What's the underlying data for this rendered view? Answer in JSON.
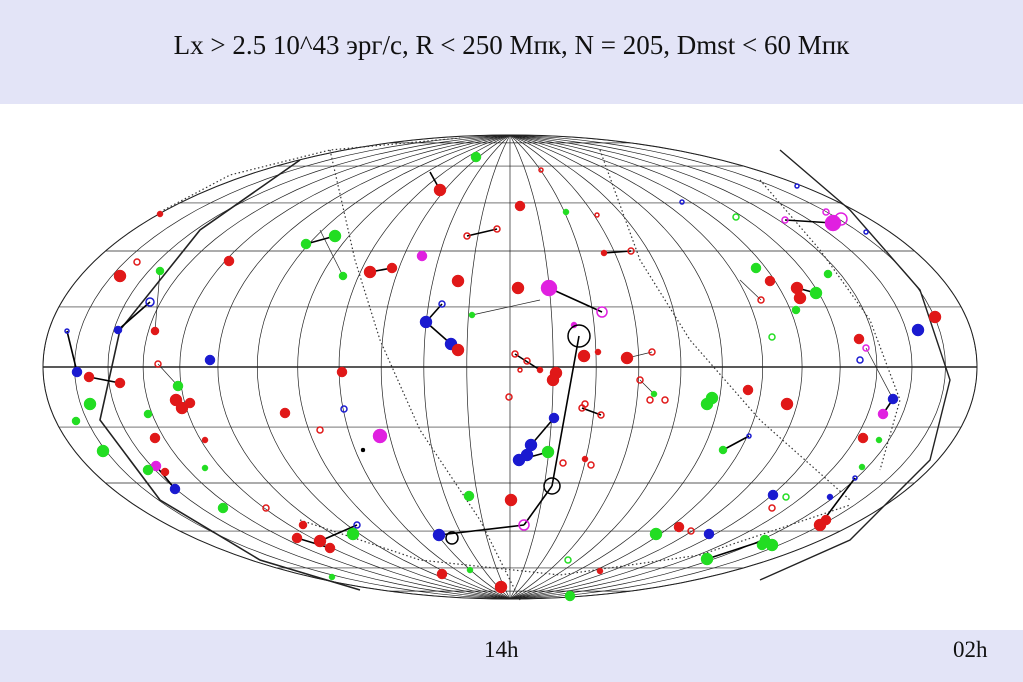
{
  "title": "Lx > 2.5 10^43 эрг/с,  R < 250 Мпк, N = 205, Dmst < 60 Мпк",
  "footer": {
    "label_center": "14h",
    "label_right": "02h"
  },
  "colors": {
    "background_bar": "#e3e4f7",
    "grid": "#222222",
    "red": "#e01818",
    "green": "#22dd22",
    "blue": "#1a1ad0",
    "magenta": "#e020e0",
    "black": "#000000"
  },
  "projection": "aitoff-hammer all-sky",
  "point_colors": [
    "red",
    "green",
    "blue",
    "magenta"
  ]
}
